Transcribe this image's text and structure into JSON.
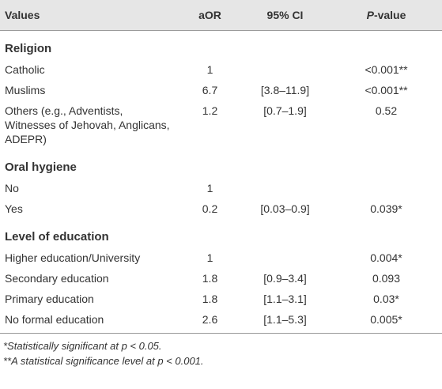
{
  "table": {
    "header": [
      "Values",
      "aOR",
      "95% CI",
      "P-value"
    ],
    "sections": [
      {
        "title": "Religion",
        "rows": [
          [
            "Catholic",
            "1",
            null,
            "<0.001**"
          ],
          [
            "Muslims",
            "6.7",
            "[3.8–11.9]",
            "<0.001**"
          ],
          [
            "Others (e.g., Adventists, Witnesses of Jehovah, Anglicans, ADEPR)",
            "1.2",
            "[0.7–1.9]",
            "0.52"
          ]
        ]
      },
      {
        "title": "Oral hygiene",
        "rows": [
          [
            "No",
            "1",
            null,
            null
          ],
          [
            "Yes",
            "0.2",
            "[0.03–0.9]",
            "0.039*"
          ]
        ]
      },
      {
        "title": "Level of education",
        "rows": [
          [
            "Higher education/University",
            "1",
            null,
            "0.004*"
          ],
          [
            "Secondary education",
            "1.8",
            "[0.9–3.4]",
            "0.093"
          ],
          [
            "Primary education",
            "1.8",
            "[1.1–3.1]",
            "0.03*"
          ],
          [
            "No formal education",
            "2.6",
            "[1.1–5.3]",
            "0.005*"
          ]
        ]
      }
    ],
    "footnotes": [
      "*Statistically significant at p < 0.05.",
      "**A statistical significance level at p < 0.001."
    ]
  }
}
